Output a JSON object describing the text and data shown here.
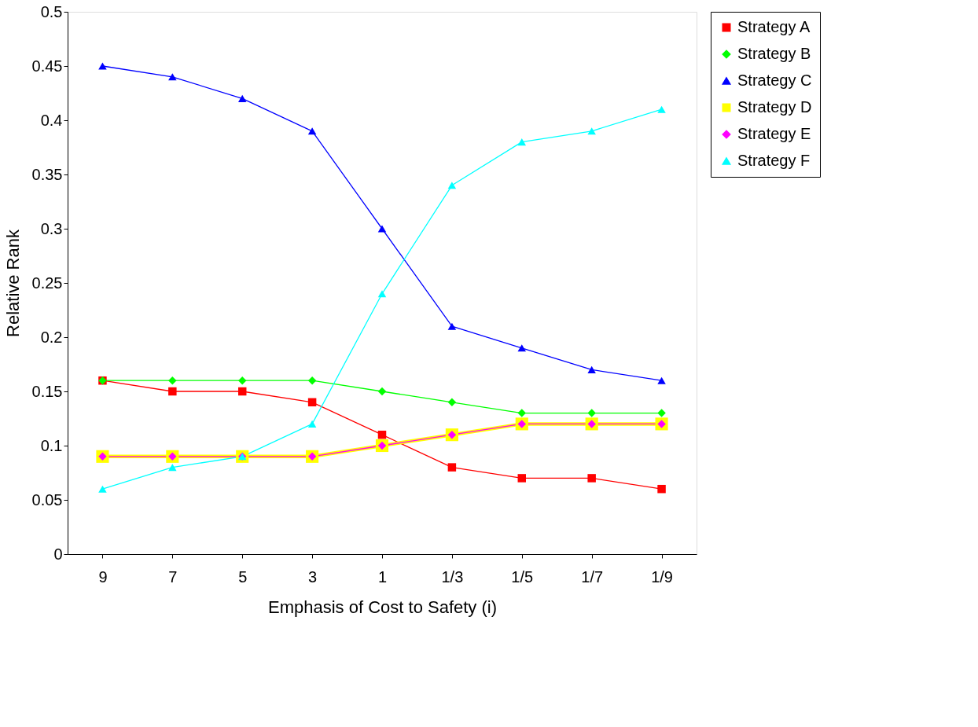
{
  "chart_data": {
    "type": "line",
    "xlabel": "Emphasis of Cost to Safety (i)",
    "ylabel": "Relative Rank",
    "categories": [
      "9",
      "7",
      "5",
      "3",
      "1",
      "1/3",
      "1/5",
      "1/7",
      "1/9"
    ],
    "series": [
      {
        "name": "Strategy A",
        "color": "#ff0000",
        "marker": "square",
        "values": [
          0.16,
          0.15,
          0.15,
          0.14,
          0.11,
          0.08,
          0.07,
          0.07,
          0.06
        ]
      },
      {
        "name": "Strategy B",
        "color": "#00ff00",
        "marker": "diamond",
        "values": [
          0.16,
          0.16,
          0.16,
          0.16,
          0.15,
          0.14,
          0.13,
          0.13,
          0.13
        ]
      },
      {
        "name": "Strategy C",
        "color": "#0000ff",
        "marker": "triangle",
        "values": [
          0.45,
          0.44,
          0.42,
          0.39,
          0.3,
          0.21,
          0.19,
          0.17,
          0.16
        ]
      },
      {
        "name": "Strategy D",
        "color": "#ffff00",
        "marker": "square",
        "values": [
          0.09,
          0.09,
          0.09,
          0.09,
          0.1,
          0.11,
          0.12,
          0.12,
          0.12
        ]
      },
      {
        "name": "Strategy E",
        "color": "#ff00ff",
        "marker": "diamond",
        "values": [
          0.09,
          0.09,
          0.09,
          0.09,
          0.1,
          0.11,
          0.12,
          0.12,
          0.12
        ]
      },
      {
        "name": "Strategy F",
        "color": "#00ffff",
        "marker": "triangle",
        "values": [
          0.06,
          0.08,
          0.09,
          0.12,
          0.24,
          0.34,
          0.38,
          0.39,
          0.41
        ]
      }
    ],
    "ylim": [
      0,
      0.5
    ],
    "yticks": [
      0,
      0.05,
      0.1,
      0.15,
      0.2,
      0.25,
      0.3,
      0.35,
      0.4,
      0.45,
      0.5
    ],
    "grid": false,
    "legend": "right",
    "line_style": "solid"
  }
}
